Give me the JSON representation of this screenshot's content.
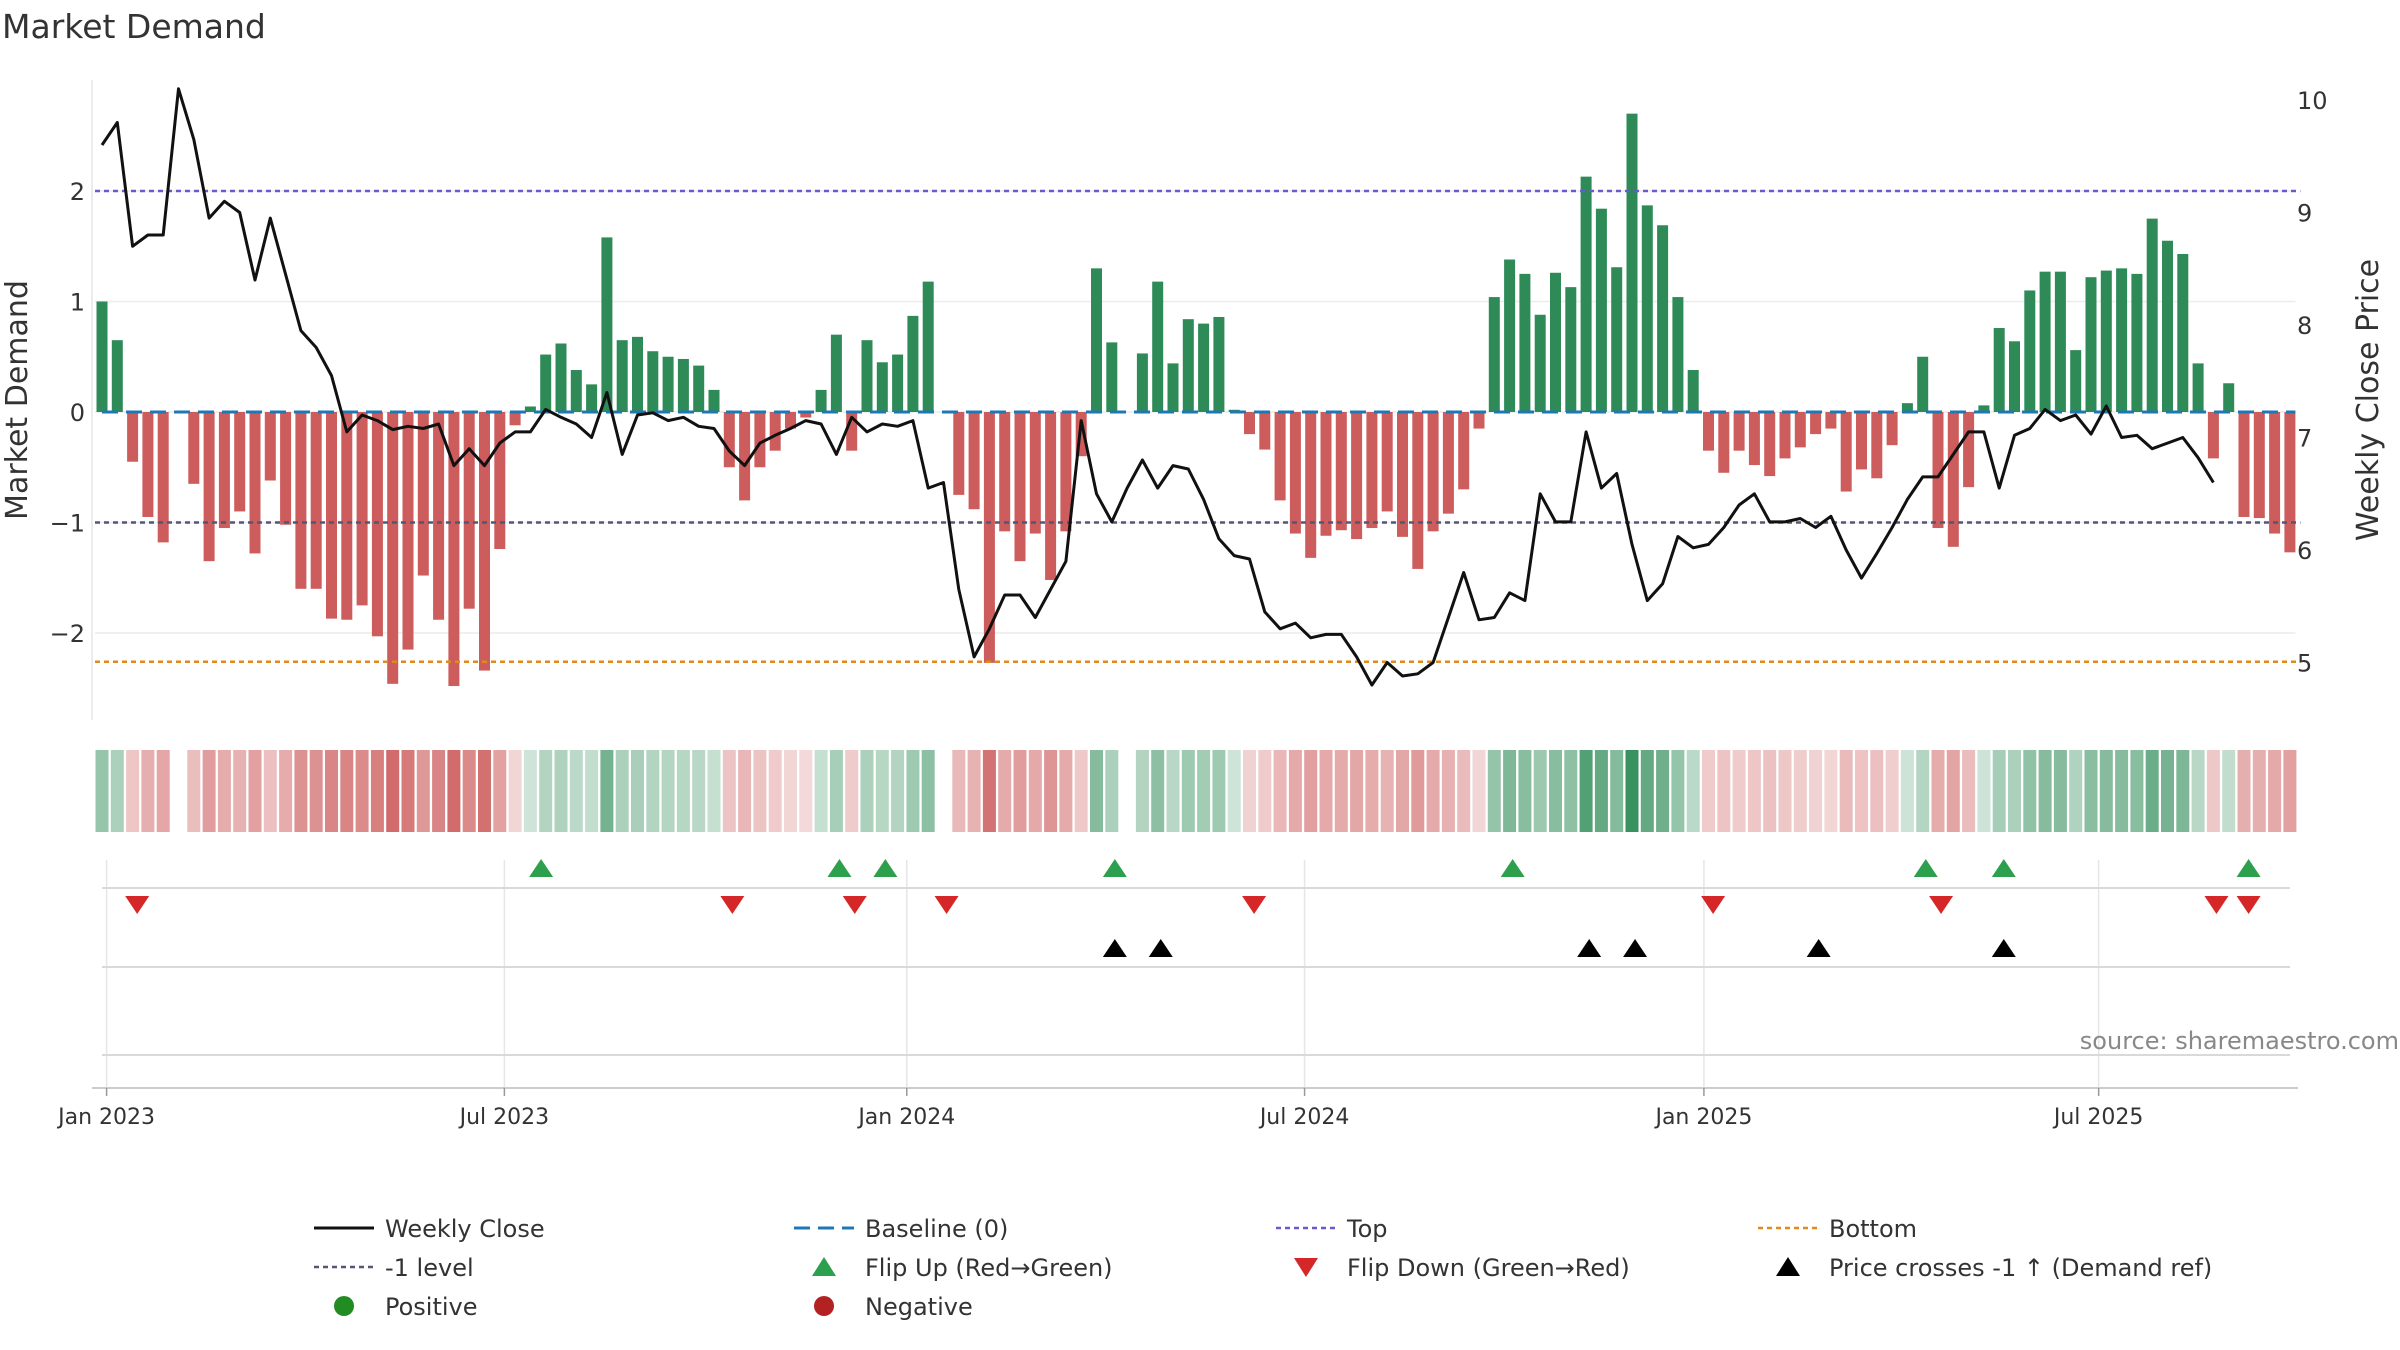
{
  "chart_data": {
    "type": "bar+line",
    "title": "Market Demand",
    "ylabel": "Market Demand",
    "y2label": "Weekly Close Price",
    "ylim": [
      -2.75,
      2.9
    ],
    "y2lim": [
      4.5,
      10.3
    ],
    "yticks": [
      "2",
      "1",
      "0",
      "−1",
      "−2"
    ],
    "ytick_values": [
      2,
      1,
      0,
      -1,
      -2
    ],
    "y2ticks": [
      "10",
      "9",
      "8",
      "7",
      "6",
      "5"
    ],
    "y2tick_values": [
      10,
      9,
      8,
      7,
      6,
      5
    ],
    "xticks": [
      {
        "label": "Jan 2023",
        "week": 0.3
      },
      {
        "label": "Jul 2023",
        "week": 26.3
      },
      {
        "label": "Jan 2024",
        "week": 52.6
      },
      {
        "label": "Jul 2024",
        "week": 78.6
      },
      {
        "label": "Jan 2025",
        "week": 104.7
      },
      {
        "label": "Jul 2025",
        "week": 130.5
      }
    ],
    "reference_lines": {
      "top": 2,
      "minus_one": -1,
      "bottom": -2.26,
      "baseline": 0
    },
    "demand": [
      1.0,
      0.65,
      -0.45,
      -0.95,
      -1.18,
      0,
      -0.65,
      -1.35,
      -1.05,
      -0.9,
      -1.28,
      -0.62,
      -1.02,
      -1.6,
      -1.6,
      -1.87,
      -1.88,
      -1.75,
      -2.03,
      -2.46,
      -2.15,
      -1.48,
      -1.88,
      -2.48,
      -1.78,
      -2.34,
      -1.24,
      -0.12,
      0.05,
      0.52,
      0.62,
      0.38,
      0.25,
      1.58,
      0.65,
      0.68,
      0.55,
      0.5,
      0.48,
      0.42,
      0.2,
      -0.5,
      -0.8,
      -0.5,
      -0.35,
      -0.15,
      -0.05,
      0.2,
      0.7,
      -0.35,
      0.65,
      0.45,
      0.52,
      0.87,
      1.18,
      0,
      -0.75,
      -0.88,
      -2.27,
      -1.08,
      -1.35,
      -1.1,
      -1.52,
      -1.08,
      -0.4,
      1.3,
      0.63,
      0.0,
      0.53,
      1.18,
      0.44,
      0.84,
      0.8,
      0.86,
      0.02,
      -0.2,
      -0.34,
      -0.8,
      -1.1,
      -1.32,
      -1.12,
      -1.07,
      -1.15,
      -1.05,
      -0.9,
      -1.13,
      -1.42,
      -1.08,
      -0.92,
      -0.7,
      -0.15,
      1.04,
      1.38,
      1.25,
      0.88,
      1.26,
      1.13,
      2.13,
      1.84,
      1.31,
      2.7,
      1.87,
      1.69,
      1.04,
      0.38,
      -0.35,
      -0.55,
      -0.35,
      -0.48,
      -0.58,
      -0.42,
      -0.32,
      -0.2,
      -0.15,
      -0.72,
      -0.52,
      -0.6,
      -0.3,
      0.08,
      0.5,
      -1.05,
      -1.22,
      -0.68,
      0.06,
      0.76,
      0.64,
      1.1,
      1.27,
      1.27,
      0.56,
      1.22,
      1.28,
      1.3,
      1.25,
      1.75,
      1.55,
      1.43,
      0.44,
      -0.42,
      0.26,
      -0.95,
      -0.96,
      -1.1,
      -1.27
    ],
    "demand_gaps": [
      5,
      55,
      67
    ],
    "weekly_close": [
      9.6,
      9.8,
      8.7,
      8.8,
      8.8,
      10.1,
      9.65,
      8.95,
      9.1,
      9.0,
      8.4,
      8.95,
      8.45,
      7.95,
      7.8,
      7.55,
      7.05,
      7.2,
      7.15,
      7.07,
      7.1,
      7.08,
      7.12,
      6.75,
      6.9,
      6.75,
      6.95,
      7.05,
      7.05,
      7.25,
      7.18,
      7.12,
      7.0,
      7.4,
      6.85,
      7.2,
      7.22,
      7.15,
      7.18,
      7.1,
      7.08,
      6.88,
      6.75,
      6.95,
      7.02,
      7.08,
      7.15,
      7.12,
      6.85,
      7.18,
      7.05,
      7.12,
      7.1,
      7.15,
      6.55,
      6.6,
      5.65,
      5.05,
      5.3,
      5.6,
      5.6,
      5.4,
      5.65,
      5.9,
      7.15,
      6.5,
      6.25,
      6.55,
      6.8,
      6.55,
      6.75,
      6.72,
      6.45,
      6.1,
      5.95,
      5.92,
      5.45,
      5.3,
      5.35,
      5.22,
      5.25,
      5.25,
      5.05,
      4.8,
      5.0,
      4.88,
      4.9,
      5.0,
      5.4,
      5.8,
      5.38,
      5.4,
      5.62,
      5.55,
      6.5,
      6.25,
      6.25,
      7.05,
      6.55,
      6.68,
      6.05,
      5.55,
      5.7,
      6.12,
      6.02,
      6.05,
      6.2,
      6.4,
      6.5,
      6.25,
      6.25,
      6.28,
      6.2,
      6.3,
      6.0,
      5.75,
      5.97,
      6.2,
      6.45,
      6.65,
      6.65,
      6.85,
      7.05,
      7.05,
      6.55,
      7.02,
      7.08,
      7.25,
      7.15,
      7.2,
      7.03,
      7.28,
      7.0,
      7.02,
      6.9,
      6.95,
      7.0,
      6.82,
      6.6
    ],
    "flip_up_weeks": [
      28.7,
      48.2,
      51.2,
      66.2,
      92.2,
      119.2,
      124.3,
      140.3
    ],
    "flip_down_weeks": [
      2.3,
      41.2,
      49.2,
      55.2,
      75.3,
      105.3,
      120.2,
      138.2,
      140.3
    ],
    "price_cross_weeks": [
      66.2,
      69.2,
      97.2,
      100.2,
      112.2,
      124.3
    ],
    "source": "source: sharemaestro.com"
  },
  "legend": {
    "items": [
      {
        "label": "Weekly Close",
        "marker": "line",
        "color": "#111111"
      },
      {
        "label": "Baseline (0)",
        "marker": "dash",
        "color": "#1f77b4"
      },
      {
        "label": "Top",
        "marker": "dotted",
        "color": "#6a5acd"
      },
      {
        "label": "Bottom",
        "marker": "dotted",
        "color": "#e08a1e"
      },
      {
        "label": "-1 level",
        "marker": "dotted",
        "color": "#555577"
      },
      {
        "label": "Flip Up (Red→Green)",
        "marker": "triangle-up",
        "color": "#2ca04c"
      },
      {
        "label": "Flip Down (Green→Red)",
        "marker": "triangle-down",
        "color": "#d62728"
      },
      {
        "label": "Price crosses -1 ↑ (Demand ref)",
        "marker": "triangle-up",
        "color": "#000000"
      },
      {
        "label": "Positive",
        "marker": "circle",
        "color": "#228b22"
      },
      {
        "label": "Negative",
        "marker": "circle",
        "color": "#b22222"
      }
    ]
  },
  "colors": {
    "positive": "#2e8b57",
    "negative": "#cd5c5c",
    "price": "#111111",
    "baseline": "#1f77b4",
    "top": "#6a5acd",
    "minus_one": "#555577",
    "bottom": "#e08a1e"
  }
}
